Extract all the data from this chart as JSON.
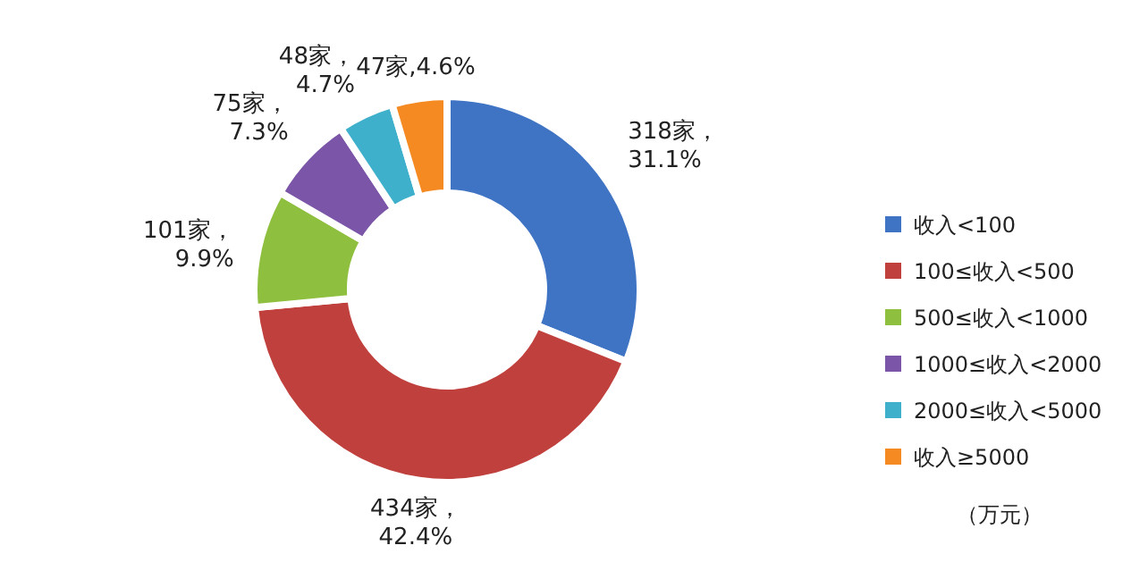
{
  "chart_data": {
    "type": "donut",
    "categories": [
      "收入<100",
      "100≤收入<500",
      "500≤收入<1000",
      "1000≤收入<2000",
      "2000≤收入<5000",
      "收入≥5000"
    ],
    "values": [
      318,
      434,
      101,
      75,
      48,
      47
    ],
    "colors": [
      "#3f73c4",
      "#c0403d",
      "#8fbf3f",
      "#7a55a8",
      "#3fb0cc",
      "#f58a22"
    ],
    "value_labels": [
      "318家，31.1%",
      "434家，42.4%",
      "101家，9.9%",
      "75家，7.3%",
      "48家，4.7%",
      "47家,4.6%"
    ],
    "legend": "right",
    "annotations": [
      "（万元）"
    ]
  }
}
